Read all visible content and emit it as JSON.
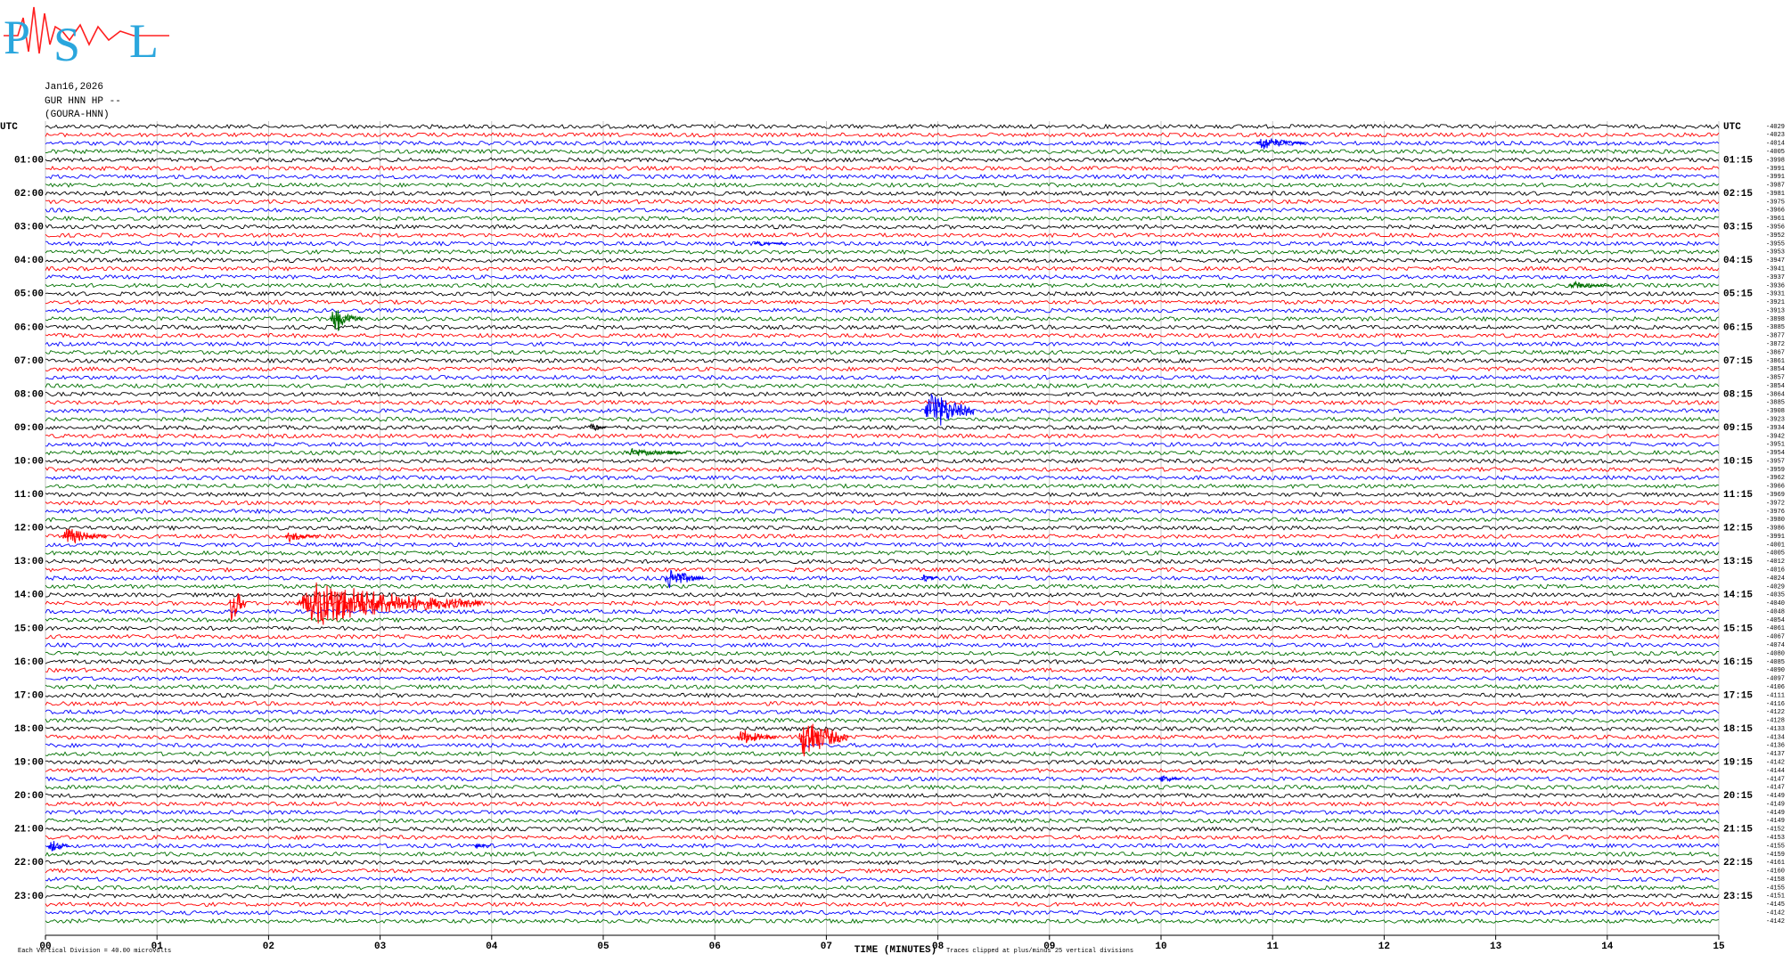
{
  "logo": {
    "letters": [
      "P",
      "S",
      "L"
    ]
  },
  "chart_data": {
    "type": "helicorder",
    "title_lines": [
      "Jan16,2026",
      "GUR HNN HP --",
      "(GOURA-HNN)"
    ],
    "left_labels": [
      "UTC",
      "01:00",
      "02:00",
      "03:00",
      "04:00",
      "05:00",
      "06:00",
      "07:00",
      "08:00",
      "09:00",
      "10:00",
      "11:00",
      "12:00",
      "13:00",
      "14:00",
      "15:00",
      "16:00",
      "17:00",
      "18:00",
      "19:00",
      "20:00",
      "21:00",
      "22:00",
      "23:00"
    ],
    "right_labels": [
      "UTC",
      "01:15",
      "02:15",
      "03:15",
      "04:15",
      "05:15",
      "06:15",
      "07:15",
      "08:15",
      "09:15",
      "10:15",
      "11:15",
      "12:15",
      "13:15",
      "14:15",
      "15:15",
      "16:15",
      "17:15",
      "18:15",
      "19:15",
      "20:15",
      "21:15",
      "22:15",
      "23:15"
    ],
    "row_offsets": [
      -4029,
      -4023,
      -4014,
      -4005,
      -3998,
      -3991,
      -3991,
      -3987,
      -3981,
      -3975,
      -3966,
      -3961,
      -3956,
      -3952,
      -3955,
      -3953,
      -3947,
      -3941,
      -3937,
      -3936,
      -3931,
      -3921,
      -3913,
      -3898,
      -3885,
      -3877,
      -3872,
      -3867,
      -3861,
      -3854,
      -3857,
      -3854,
      -3864,
      -3885,
      -3908,
      -3923,
      -3934,
      -3942,
      -3951,
      -3954,
      -3957,
      -3959,
      -3962,
      -3966,
      -3969,
      -3972,
      -3976,
      -3980,
      -3986,
      -3991,
      -4001,
      -4005,
      -4012,
      -4016,
      -4024,
      -4029,
      -4035,
      -4040,
      -4048,
      -4054,
      -4061,
      -4067,
      -4074,
      -4080,
      -4085,
      -4090,
      -4097,
      -4106,
      -4111,
      -4116,
      -4122,
      -4128,
      -4133,
      -4134,
      -4136,
      -4137,
      -4142,
      -4144,
      -4147,
      -4147,
      -4149,
      -4149,
      -4149,
      -4149,
      -4152,
      -4153,
      -4155,
      -4159,
      -4161,
      -4160,
      -4158,
      -4155,
      -4151,
      -4145,
      -4142,
      -4142
    ],
    "colors": [
      "#000000",
      "#ff0000",
      "#0000ff",
      "#007000"
    ],
    "noise_level": 1.6,
    "events": [
      {
        "row": 2,
        "minute": 10.85,
        "duration": 0.45,
        "amplitude": 8
      },
      {
        "row": 14,
        "minute": 6.35,
        "duration": 0.3,
        "amplitude": 3
      },
      {
        "row": 19,
        "minute": 13.65,
        "duration": 0.4,
        "amplitude": 4
      },
      {
        "row": 23,
        "minute": 2.55,
        "duration": 0.3,
        "amplitude": 12
      },
      {
        "row": 23,
        "minute": 2.62,
        "duration": 0.03,
        "amplitude": 25
      },
      {
        "row": 34,
        "minute": 7.88,
        "duration": 0.45,
        "amplitude": 25
      },
      {
        "row": 36,
        "minute": 4.88,
        "duration": 0.15,
        "amplitude": 6
      },
      {
        "row": 39,
        "minute": 5.2,
        "duration": 0.55,
        "amplitude": 5
      },
      {
        "row": 49,
        "minute": 0.15,
        "duration": 0.4,
        "amplitude": 10
      },
      {
        "row": 49,
        "minute": 2.15,
        "duration": 0.3,
        "amplitude": 6
      },
      {
        "row": 54,
        "minute": 5.55,
        "duration": 0.35,
        "amplitude": 12
      },
      {
        "row": 54,
        "minute": 7.85,
        "duration": 0.15,
        "amplitude": 5
      },
      {
        "row": 57,
        "minute": 1.65,
        "duration": 0.15,
        "amplitude": 25
      },
      {
        "row": 57,
        "minute": 2.25,
        "duration": 1.65,
        "amplitude": 25
      },
      {
        "row": 73,
        "minute": 6.2,
        "duration": 0.35,
        "amplitude": 9
      },
      {
        "row": 73,
        "minute": 6.75,
        "duration": 0.45,
        "amplitude": 25
      },
      {
        "row": 78,
        "minute": 9.98,
        "duration": 0.2,
        "amplitude": 5
      },
      {
        "row": 86,
        "minute": 0.02,
        "duration": 0.2,
        "amplitude": 8
      },
      {
        "row": 86,
        "minute": 3.85,
        "duration": 0.15,
        "amplitude": 4
      }
    ],
    "xlim": [
      0,
      15
    ],
    "xticks": [
      {
        "value": 0,
        "label": "00"
      },
      {
        "value": 1,
        "label": "01"
      },
      {
        "value": 2,
        "label": "02"
      },
      {
        "value": 3,
        "label": "03"
      },
      {
        "value": 4,
        "label": "04"
      },
      {
        "value": 5,
        "label": "05"
      },
      {
        "value": 6,
        "label": "06"
      },
      {
        "value": 7,
        "label": "07"
      },
      {
        "value": 8,
        "label": "08"
      },
      {
        "value": 9,
        "label": "09"
      },
      {
        "value": 10,
        "label": "10"
      },
      {
        "value": 11,
        "label": "11"
      },
      {
        "value": 12,
        "label": "12"
      },
      {
        "value": 13,
        "label": "13"
      },
      {
        "value": 14,
        "label": "14"
      },
      {
        "value": 15,
        "label": "15"
      }
    ],
    "xlabel": "TIME (MINUTES)",
    "footer_left": "Each Vertical Division =   40.00 microvolts",
    "footer_right": "Traces clipped at plus/minus 25 vertical divisions",
    "grid": true
  }
}
